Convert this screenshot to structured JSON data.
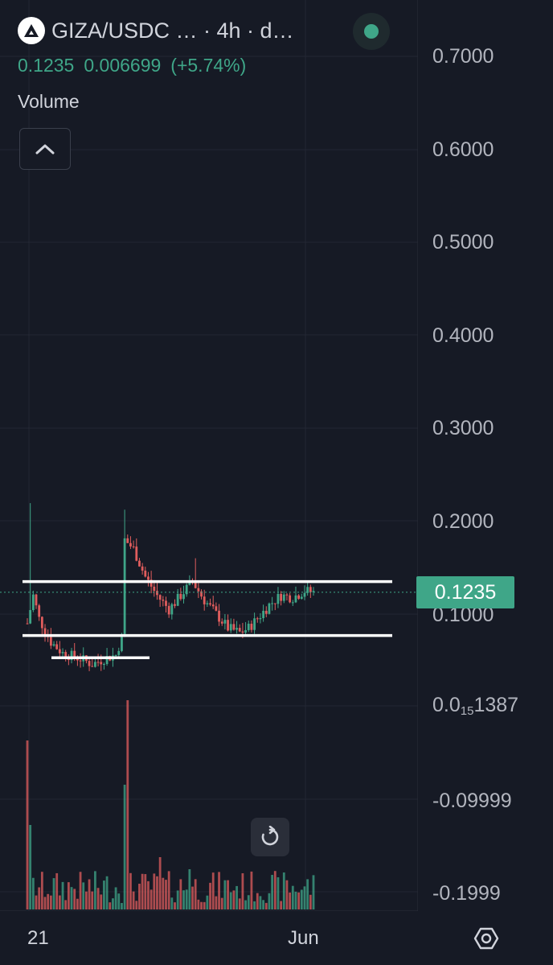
{
  "header": {
    "title": "GIZA/USDC … · 4h · d…",
    "logo_icon": "giza-logo-icon",
    "live_indicator_color": "#3fa688"
  },
  "ohlc": {
    "price": "0.1235",
    "change": "0.006699",
    "change_pct": "(+5.74%)",
    "color": "#3fa688"
  },
  "volume_label": "Volume",
  "price_axis": {
    "ticks": [
      {
        "label": "0.7000"
      },
      {
        "label": "0.6000"
      },
      {
        "label": "0.5000"
      },
      {
        "label": "0.4000"
      },
      {
        "label": "0.3000"
      },
      {
        "label": "0.2000"
      },
      {
        "label": "0.1000"
      },
      {
        "label_main": "0.0",
        "label_sub": "15",
        "label_tail": "1387"
      },
      {
        "label": "-0.09999"
      },
      {
        "label": "-0.1999"
      }
    ],
    "current_price_badge": "0.1235"
  },
  "time_axis": {
    "ticks": [
      "21",
      "Jun"
    ]
  },
  "colors": {
    "background": "#161a25",
    "up": "#3fa688",
    "down": "#e05d5d",
    "grid": "#232733",
    "lines": "#ffffff"
  },
  "chart_data": {
    "type": "candlestick",
    "pair": "GIZA/USDC",
    "interval": "4h",
    "ylim": [
      -0.2,
      0.75
    ],
    "horizontal_lines": [
      0.135,
      0.077,
      0.053
    ],
    "last_price": 0.1235
  }
}
